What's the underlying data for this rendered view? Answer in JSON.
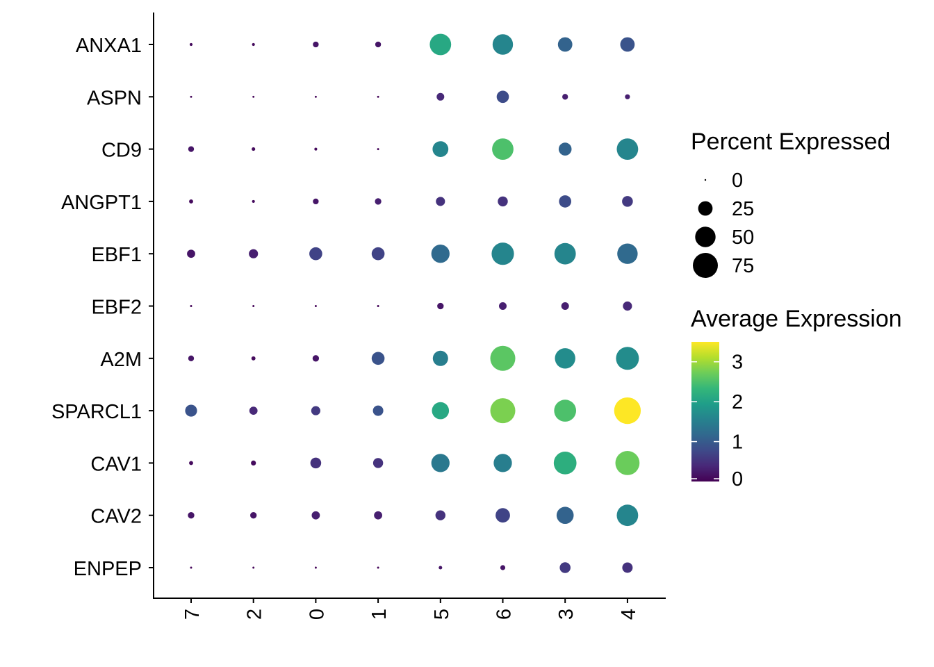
{
  "chart_data": {
    "type": "dotplot",
    "categories": [
      "7",
      "2",
      "0",
      "1",
      "5",
      "6",
      "3",
      "4"
    ],
    "genes": [
      "ANXA1",
      "ASPN",
      "CD9",
      "ANGPT1",
      "EBF1",
      "EBF2",
      "A2M",
      "SPARCL1",
      "CAV1",
      "CAV2",
      "ENPEP"
    ],
    "pct_expressed": [
      [
        1,
        1,
        4,
        4,
        55,
        50,
        25,
        25
      ],
      [
        0.5,
        0.5,
        0.5,
        0.5,
        7,
        18,
        4,
        3
      ],
      [
        4,
        1.5,
        1,
        0.5,
        30,
        55,
        20,
        55
      ],
      [
        2,
        1,
        4,
        5,
        10,
        12,
        18,
        14
      ],
      [
        8,
        10,
        20,
        20,
        40,
        60,
        55,
        50
      ],
      [
        0.5,
        0.5,
        0.5,
        0.5,
        5,
        7,
        7,
        10
      ],
      [
        4,
        2,
        5,
        20,
        28,
        75,
        50,
        63
      ],
      [
        17,
        8,
        10,
        13,
        35,
        75,
        58,
        85
      ],
      [
        2,
        3,
        14,
        12,
        40,
        40,
        62,
        70
      ],
      [
        5,
        5,
        8,
        8,
        12,
        25,
        35,
        55
      ],
      [
        0.5,
        0.5,
        0.5,
        0.5,
        1.5,
        3,
        14,
        13
      ]
    ],
    "avg_expression": [
      [
        0.1,
        0.1,
        0.2,
        0.2,
        2.1,
        1.6,
        1.1,
        0.9
      ],
      [
        0.05,
        0.05,
        0.05,
        0.05,
        0.4,
        0.8,
        0.3,
        0.3
      ],
      [
        0.2,
        0.1,
        0.1,
        0.05,
        1.6,
        2.5,
        1.1,
        1.6
      ],
      [
        0.1,
        0.1,
        0.2,
        0.3,
        0.5,
        0.5,
        0.8,
        0.6
      ],
      [
        0.2,
        0.3,
        0.7,
        0.7,
        1.2,
        1.6,
        1.6,
        1.2
      ],
      [
        0.05,
        0.05,
        0.05,
        0.05,
        0.2,
        0.3,
        0.3,
        0.4
      ],
      [
        0.2,
        0.1,
        0.2,
        0.9,
        1.5,
        2.6,
        1.7,
        1.7
      ],
      [
        0.9,
        0.4,
        0.6,
        0.9,
        2.1,
        2.8,
        2.5,
        3.5
      ],
      [
        0.1,
        0.1,
        0.5,
        0.5,
        1.4,
        1.5,
        2.2,
        2.7
      ],
      [
        0.2,
        0.2,
        0.3,
        0.3,
        0.5,
        0.7,
        1.1,
        1.6
      ],
      [
        0.05,
        0.05,
        0.05,
        0.05,
        0.2,
        0.2,
        0.6,
        0.5
      ]
    ],
    "xlabel": "",
    "ylabel": "",
    "size_legend": {
      "title": "Percent Expressed",
      "values": [
        0,
        25,
        50,
        75
      ]
    },
    "color_legend": {
      "title": "Average Expression",
      "ticks": [
        0,
        1,
        2,
        3
      ],
      "range": [
        0,
        3.5
      ]
    },
    "colormap": [
      "#440154",
      "#482878",
      "#3E4A89",
      "#31688E",
      "#26828E",
      "#1F9E89",
      "#35B779",
      "#6DCD59",
      "#B4DE2C",
      "#FDE725"
    ],
    "x_tick_rotation": "vertical",
    "grid": false
  }
}
